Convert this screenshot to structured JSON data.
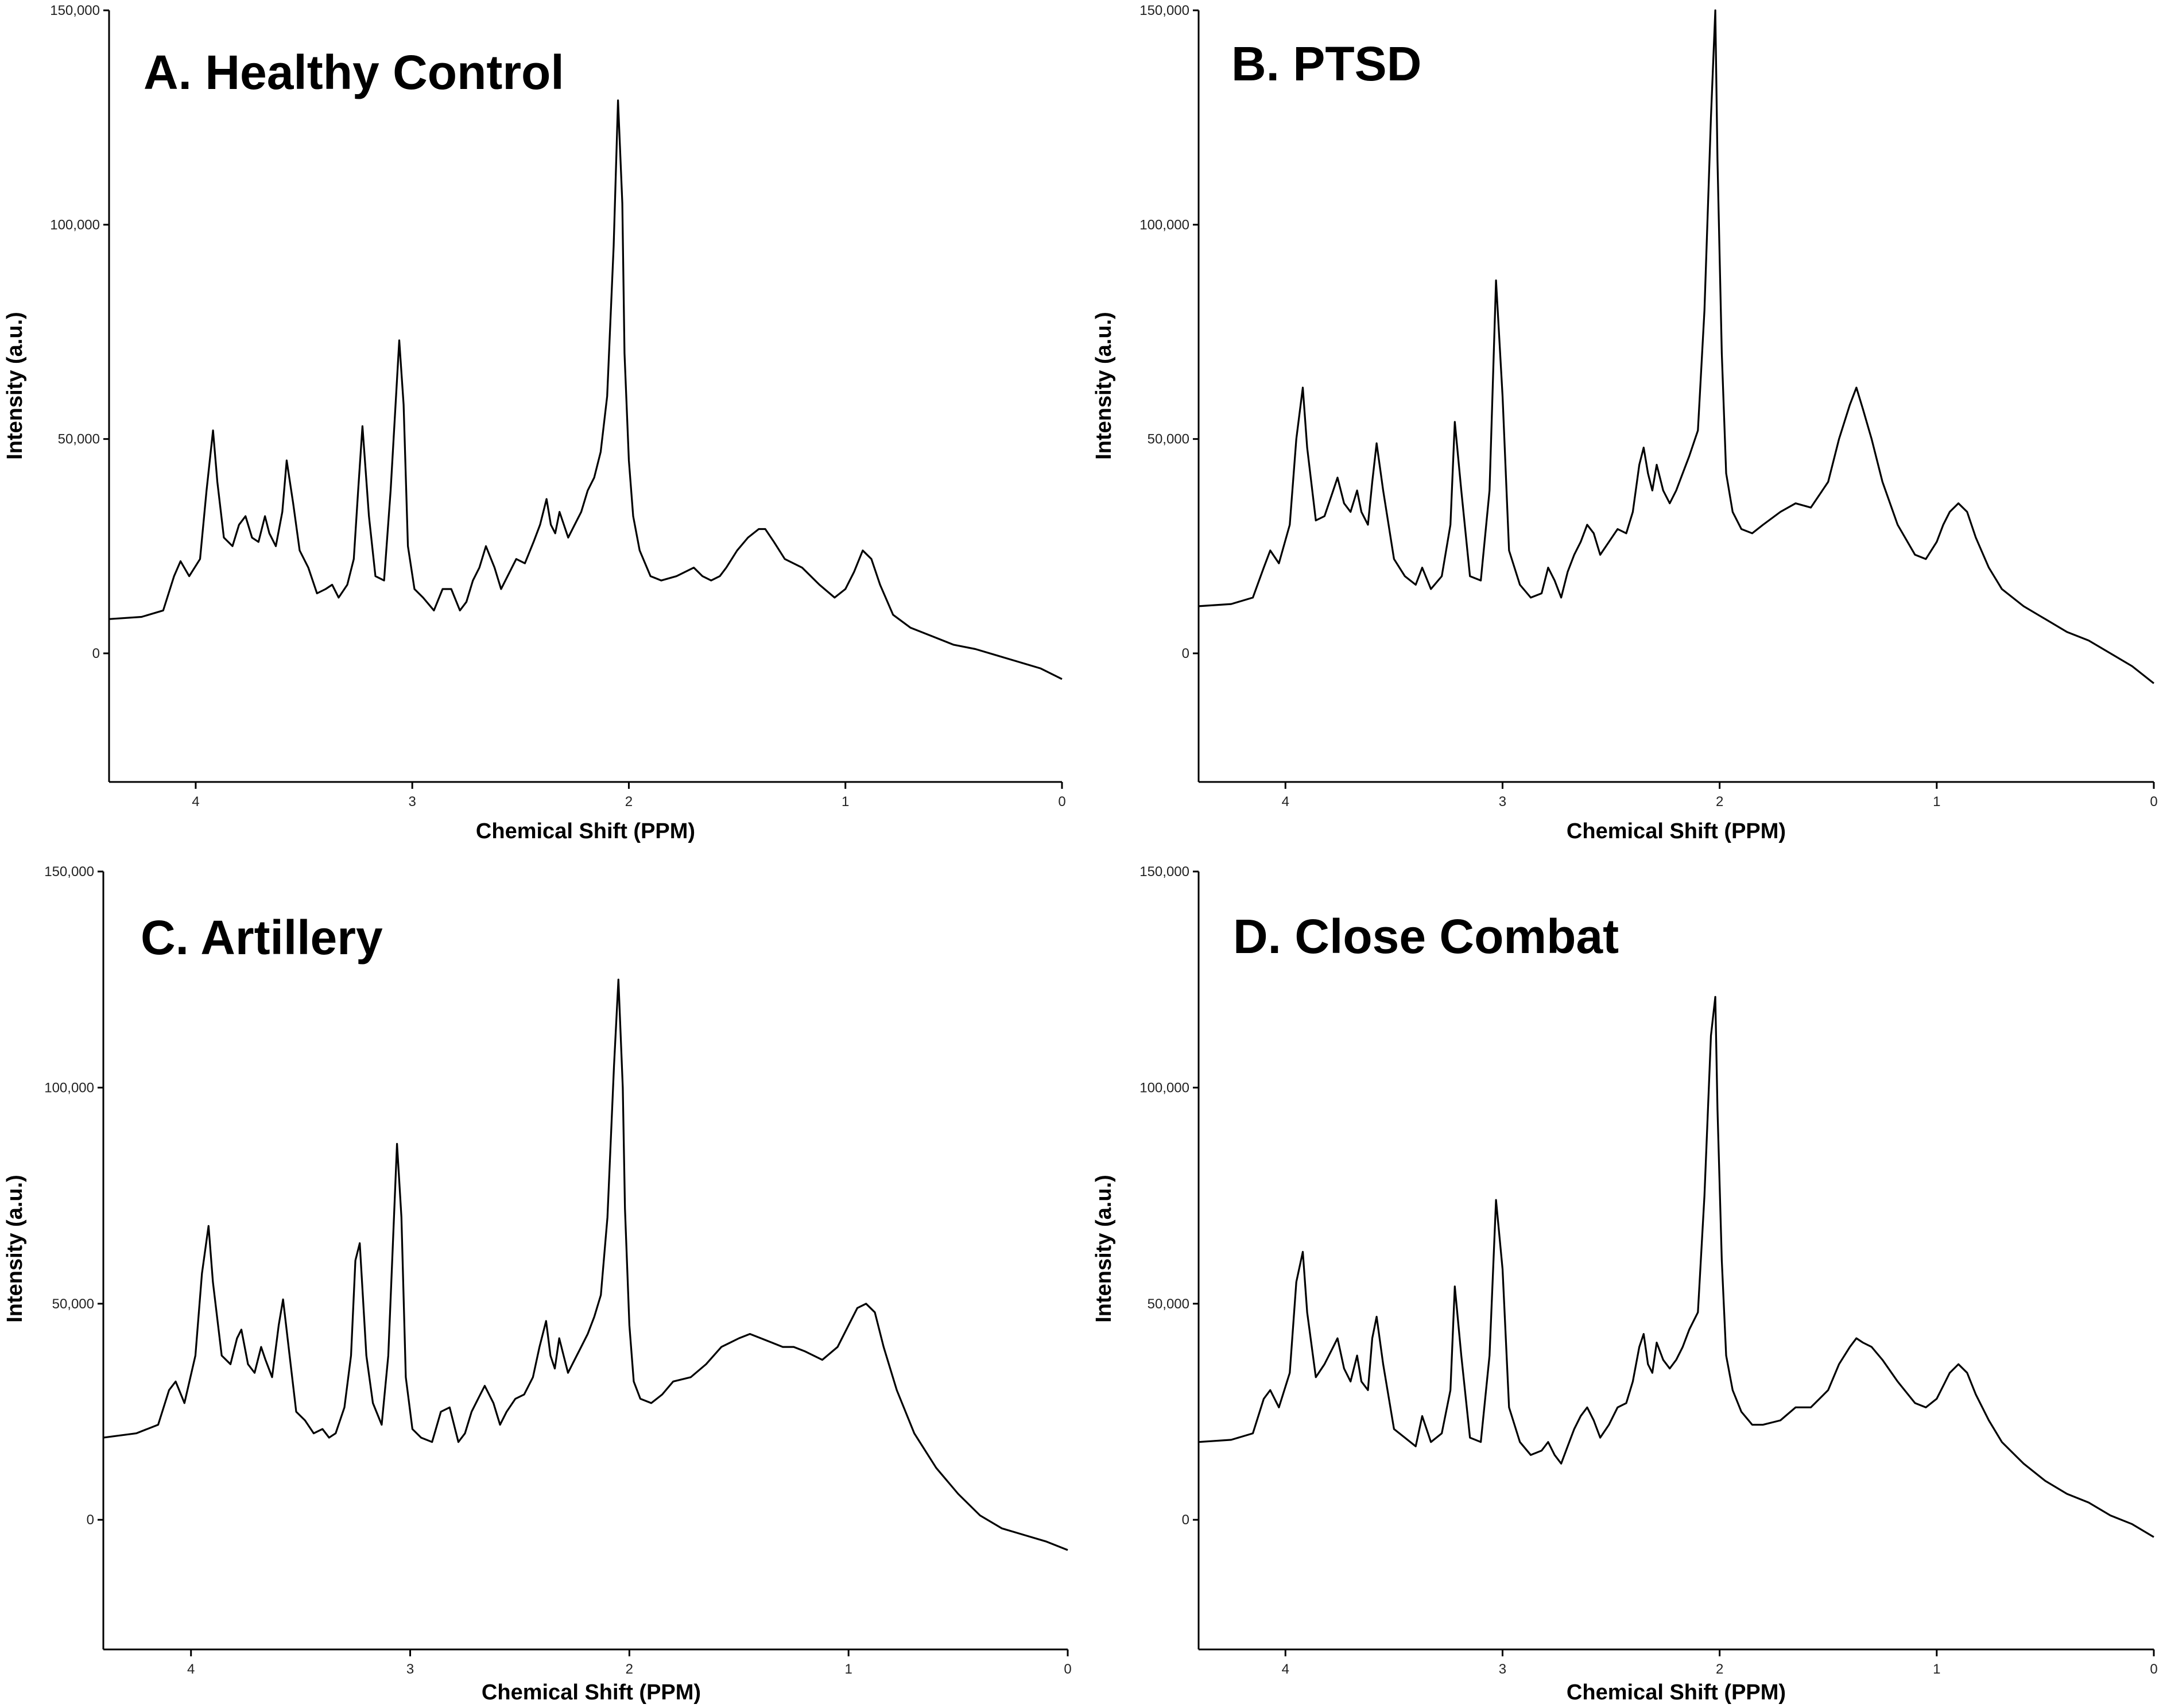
{
  "figure": {
    "accent_color": "#000000",
    "background": "#ffffff"
  },
  "chart_data": [
    {
      "type": "line",
      "title": "A. Healthy Control",
      "xlabel": "Chemical Shift (PPM)",
      "ylabel": "Intensity (a.u.)",
      "xlim": [
        4.4,
        0.0
      ],
      "ylim": [
        -30000,
        150000
      ],
      "xticks": [
        "4",
        "3",
        "2",
        "1",
        "0"
      ],
      "yticks": [
        "0",
        "50,000",
        "100,000",
        "150,000"
      ],
      "series": [
        {
          "name": "Healthy Control",
          "x": [
            4.4,
            4.25,
            4.15,
            4.1,
            4.07,
            4.03,
            3.98,
            3.95,
            3.92,
            3.9,
            3.87,
            3.83,
            3.8,
            3.77,
            3.74,
            3.71,
            3.68,
            3.66,
            3.63,
            3.6,
            3.58,
            3.55,
            3.52,
            3.48,
            3.44,
            3.4,
            3.37,
            3.34,
            3.3,
            3.27,
            3.25,
            3.23,
            3.2,
            3.17,
            3.13,
            3.1,
            3.06,
            3.04,
            3.02,
            2.99,
            2.95,
            2.9,
            2.86,
            2.82,
            2.78,
            2.75,
            2.72,
            2.69,
            2.66,
            2.62,
            2.59,
            2.56,
            2.52,
            2.48,
            2.44,
            2.41,
            2.38,
            2.36,
            2.34,
            2.32,
            2.3,
            2.28,
            2.25,
            2.22,
            2.19,
            2.16,
            2.13,
            2.1,
            2.07,
            2.05,
            2.03,
            2.02,
            2.0,
            1.98,
            1.95,
            1.9,
            1.85,
            1.78,
            1.7,
            1.66,
            1.62,
            1.58,
            1.55,
            1.5,
            1.45,
            1.4,
            1.37,
            1.33,
            1.28,
            1.2,
            1.12,
            1.05,
            1.0,
            0.96,
            0.92,
            0.88,
            0.84,
            0.78,
            0.7,
            0.6,
            0.5,
            0.4,
            0.3,
            0.2,
            0.1,
            0.0
          ],
          "y": [
            8000,
            8500,
            10000,
            18000,
            21500,
            18000,
            22000,
            38000,
            52000,
            40000,
            27000,
            25000,
            30000,
            32000,
            27000,
            26000,
            32000,
            28000,
            25000,
            33000,
            45000,
            35000,
            24000,
            20000,
            14000,
            15000,
            16000,
            13000,
            16000,
            22000,
            38000,
            53000,
            32000,
            18000,
            17000,
            38000,
            73000,
            58000,
            25000,
            15000,
            13000,
            10000,
            15000,
            15000,
            10000,
            12000,
            17000,
            20000,
            25000,
            20000,
            15000,
            18000,
            22000,
            21000,
            26000,
            30000,
            36000,
            30000,
            28000,
            33000,
            30000,
            27000,
            30000,
            33000,
            38000,
            41000,
            47000,
            60000,
            95000,
            129000,
            105000,
            70000,
            45000,
            32000,
            24000,
            18000,
            17000,
            18000,
            20000,
            18000,
            17000,
            18000,
            20000,
            24000,
            27000,
            29000,
            29000,
            26000,
            22000,
            20000,
            16000,
            13000,
            15000,
            19000,
            24000,
            22000,
            16000,
            9000,
            6000,
            4000,
            2000,
            1000,
            -500,
            -2000,
            -3500,
            -6000
          ]
        }
      ]
    },
    {
      "type": "line",
      "title": "B. PTSD",
      "xlabel": "Chemical Shift (PPM)",
      "ylabel": "Intensity (a.u.)",
      "xlim": [
        4.4,
        0.0
      ],
      "ylim": [
        -30000,
        150000
      ],
      "xticks": [
        "4",
        "3",
        "2",
        "1",
        "0"
      ],
      "yticks": [
        "0",
        "50,000",
        "100,000",
        "150,000"
      ],
      "series": [
        {
          "name": "PTSD",
          "x": [
            4.4,
            4.25,
            4.15,
            4.1,
            4.07,
            4.03,
            3.98,
            3.95,
            3.92,
            3.9,
            3.86,
            3.82,
            3.78,
            3.76,
            3.73,
            3.7,
            3.67,
            3.65,
            3.62,
            3.6,
            3.58,
            3.55,
            3.5,
            3.45,
            3.4,
            3.37,
            3.33,
            3.28,
            3.24,
            3.22,
            3.19,
            3.15,
            3.1,
            3.06,
            3.03,
            3.0,
            2.97,
            2.92,
            2.87,
            2.82,
            2.79,
            2.76,
            2.73,
            2.7,
            2.67,
            2.64,
            2.61,
            2.58,
            2.55,
            2.51,
            2.47,
            2.43,
            2.4,
            2.37,
            2.35,
            2.33,
            2.31,
            2.29,
            2.26,
            2.23,
            2.2,
            2.17,
            2.14,
            2.1,
            2.07,
            2.04,
            2.02,
            2.01,
            1.99,
            1.97,
            1.94,
            1.9,
            1.85,
            1.8,
            1.72,
            1.65,
            1.58,
            1.5,
            1.45,
            1.4,
            1.37,
            1.34,
            1.3,
            1.25,
            1.18,
            1.1,
            1.05,
            1.0,
            0.97,
            0.94,
            0.9,
            0.86,
            0.82,
            0.76,
            0.7,
            0.6,
            0.5,
            0.4,
            0.3,
            0.2,
            0.1,
            0.0
          ],
          "y": [
            11000,
            11500,
            13000,
            20000,
            24000,
            21000,
            30000,
            50000,
            62000,
            48000,
            31000,
            32000,
            38000,
            41000,
            35000,
            33000,
            38000,
            33000,
            30000,
            40000,
            49000,
            38000,
            22000,
            18000,
            16000,
            20000,
            15000,
            18000,
            30000,
            54000,
            38000,
            18000,
            17000,
            38000,
            87000,
            60000,
            24000,
            16000,
            13000,
            14000,
            20000,
            17000,
            13000,
            19000,
            23000,
            26000,
            30000,
            28000,
            23000,
            26000,
            29000,
            28000,
            33000,
            44000,
            48000,
            42000,
            38000,
            44000,
            38000,
            35000,
            38000,
            42000,
            46000,
            52000,
            80000,
            125000,
            150000,
            115000,
            70000,
            42000,
            33000,
            29000,
            28000,
            30000,
            33000,
            35000,
            34000,
            40000,
            50000,
            58000,
            62000,
            57000,
            50000,
            40000,
            30000,
            23000,
            22000,
            26000,
            30000,
            33000,
            35000,
            33000,
            27000,
            20000,
            15000,
            11000,
            8000,
            5000,
            3000,
            0,
            -3000,
            -7000
          ]
        }
      ]
    },
    {
      "type": "line",
      "title": "C. Artillery",
      "xlabel": "Chemical Shift (PPM)",
      "ylabel": "Intensity (a.u.)",
      "xlim": [
        4.4,
        0.0
      ],
      "ylim": [
        -30000,
        150000
      ],
      "xticks": [
        "4",
        "3",
        "2",
        "1",
        "0"
      ],
      "yticks": [
        "0",
        "50,000",
        "100,000",
        "150,000"
      ],
      "series": [
        {
          "name": "Artillery",
          "x": [
            4.4,
            4.25,
            4.15,
            4.1,
            4.07,
            4.03,
            3.98,
            3.95,
            3.92,
            3.9,
            3.86,
            3.82,
            3.79,
            3.77,
            3.74,
            3.71,
            3.68,
            3.66,
            3.63,
            3.6,
            3.58,
            3.55,
            3.52,
            3.48,
            3.44,
            3.4,
            3.37,
            3.34,
            3.3,
            3.27,
            3.25,
            3.23,
            3.2,
            3.17,
            3.13,
            3.1,
            3.06,
            3.04,
            3.02,
            2.99,
            2.95,
            2.9,
            2.86,
            2.82,
            2.78,
            2.75,
            2.72,
            2.69,
            2.66,
            2.62,
            2.59,
            2.56,
            2.52,
            2.48,
            2.44,
            2.41,
            2.38,
            2.36,
            2.34,
            2.32,
            2.3,
            2.28,
            2.25,
            2.22,
            2.19,
            2.16,
            2.13,
            2.1,
            2.07,
            2.05,
            2.03,
            2.02,
            2.0,
            1.98,
            1.95,
            1.9,
            1.85,
            1.8,
            1.72,
            1.65,
            1.58,
            1.5,
            1.45,
            1.4,
            1.35,
            1.3,
            1.25,
            1.2,
            1.12,
            1.05,
            1.0,
            0.96,
            0.92,
            0.88,
            0.84,
            0.78,
            0.7,
            0.6,
            0.5,
            0.4,
            0.3,
            0.2,
            0.1,
            0.0
          ],
          "y": [
            19000,
            20000,
            22000,
            30000,
            32000,
            27000,
            38000,
            57000,
            68000,
            55000,
            38000,
            36000,
            42000,
            44000,
            36000,
            34000,
            40000,
            37000,
            33000,
            45000,
            51000,
            38000,
            25000,
            23000,
            20000,
            21000,
            19000,
            20000,
            26000,
            38000,
            60000,
            64000,
            38000,
            27000,
            22000,
            38000,
            87000,
            70000,
            33000,
            21000,
            19000,
            18000,
            25000,
            26000,
            18000,
            20000,
            25000,
            28000,
            31000,
            27000,
            22000,
            25000,
            28000,
            29000,
            33000,
            40000,
            46000,
            38000,
            35000,
            42000,
            38000,
            34000,
            37000,
            40000,
            43000,
            47000,
            52000,
            70000,
            105000,
            125000,
            100000,
            72000,
            45000,
            32000,
            28000,
            27000,
            29000,
            32000,
            33000,
            36000,
            40000,
            42000,
            43000,
            42000,
            41000,
            40000,
            40000,
            39000,
            37000,
            40000,
            45000,
            49000,
            50000,
            48000,
            40000,
            30000,
            20000,
            12000,
            6000,
            1000,
            -2000,
            -3500,
            -5000,
            -7000
          ]
        }
      ]
    },
    {
      "type": "line",
      "title": "D. Close Combat",
      "xlabel": "Chemical Shift (PPM)",
      "ylabel": "Intensity (a.u.)",
      "xlim": [
        4.4,
        0.0
      ],
      "ylim": [
        -30000,
        150000
      ],
      "xticks": [
        "4",
        "3",
        "2",
        "1",
        "0"
      ],
      "yticks": [
        "0",
        "50,000",
        "100,000",
        "150,000"
      ],
      "series": [
        {
          "name": "Close Combat",
          "x": [
            4.4,
            4.25,
            4.15,
            4.1,
            4.07,
            4.03,
            3.98,
            3.95,
            3.92,
            3.9,
            3.86,
            3.82,
            3.78,
            3.76,
            3.73,
            3.7,
            3.67,
            3.65,
            3.62,
            3.6,
            3.58,
            3.55,
            3.5,
            3.45,
            3.4,
            3.37,
            3.33,
            3.28,
            3.24,
            3.22,
            3.19,
            3.15,
            3.1,
            3.06,
            3.03,
            3.0,
            2.97,
            2.92,
            2.87,
            2.82,
            2.79,
            2.76,
            2.73,
            2.7,
            2.67,
            2.64,
            2.61,
            2.58,
            2.55,
            2.51,
            2.47,
            2.43,
            2.4,
            2.37,
            2.35,
            2.33,
            2.31,
            2.29,
            2.26,
            2.23,
            2.2,
            2.17,
            2.14,
            2.1,
            2.07,
            2.04,
            2.02,
            2.01,
            1.99,
            1.97,
            1.94,
            1.9,
            1.85,
            1.8,
            1.72,
            1.65,
            1.58,
            1.5,
            1.45,
            1.4,
            1.37,
            1.34,
            1.3,
            1.25,
            1.18,
            1.1,
            1.05,
            1.0,
            0.97,
            0.94,
            0.9,
            0.86,
            0.82,
            0.76,
            0.7,
            0.6,
            0.5,
            0.4,
            0.3,
            0.2,
            0.1,
            0.0
          ],
          "y": [
            18000,
            18500,
            20000,
            28000,
            30000,
            26000,
            34000,
            55000,
            62000,
            48000,
            33000,
            36000,
            40000,
            42000,
            35000,
            32000,
            38000,
            32000,
            30000,
            42000,
            47000,
            36000,
            21000,
            19000,
            17000,
            24000,
            18000,
            20000,
            30000,
            54000,
            38000,
            19000,
            18000,
            38000,
            74000,
            58000,
            26000,
            18000,
            15000,
            16000,
            18000,
            15000,
            13000,
            17000,
            21000,
            24000,
            26000,
            23000,
            19000,
            22000,
            26000,
            27000,
            32000,
            40000,
            43000,
            36000,
            34000,
            41000,
            37000,
            35000,
            37000,
            40000,
            44000,
            48000,
            75000,
            112000,
            121000,
            95000,
            60000,
            38000,
            30000,
            25000,
            22000,
            22000,
            23000,
            26000,
            26000,
            30000,
            36000,
            40000,
            42000,
            41000,
            40000,
            37000,
            32000,
            27000,
            26000,
            28000,
            31000,
            34000,
            36000,
            34000,
            29000,
            23000,
            18000,
            13000,
            9000,
            6000,
            4000,
            1000,
            -1000,
            -4000
          ]
        }
      ]
    }
  ]
}
